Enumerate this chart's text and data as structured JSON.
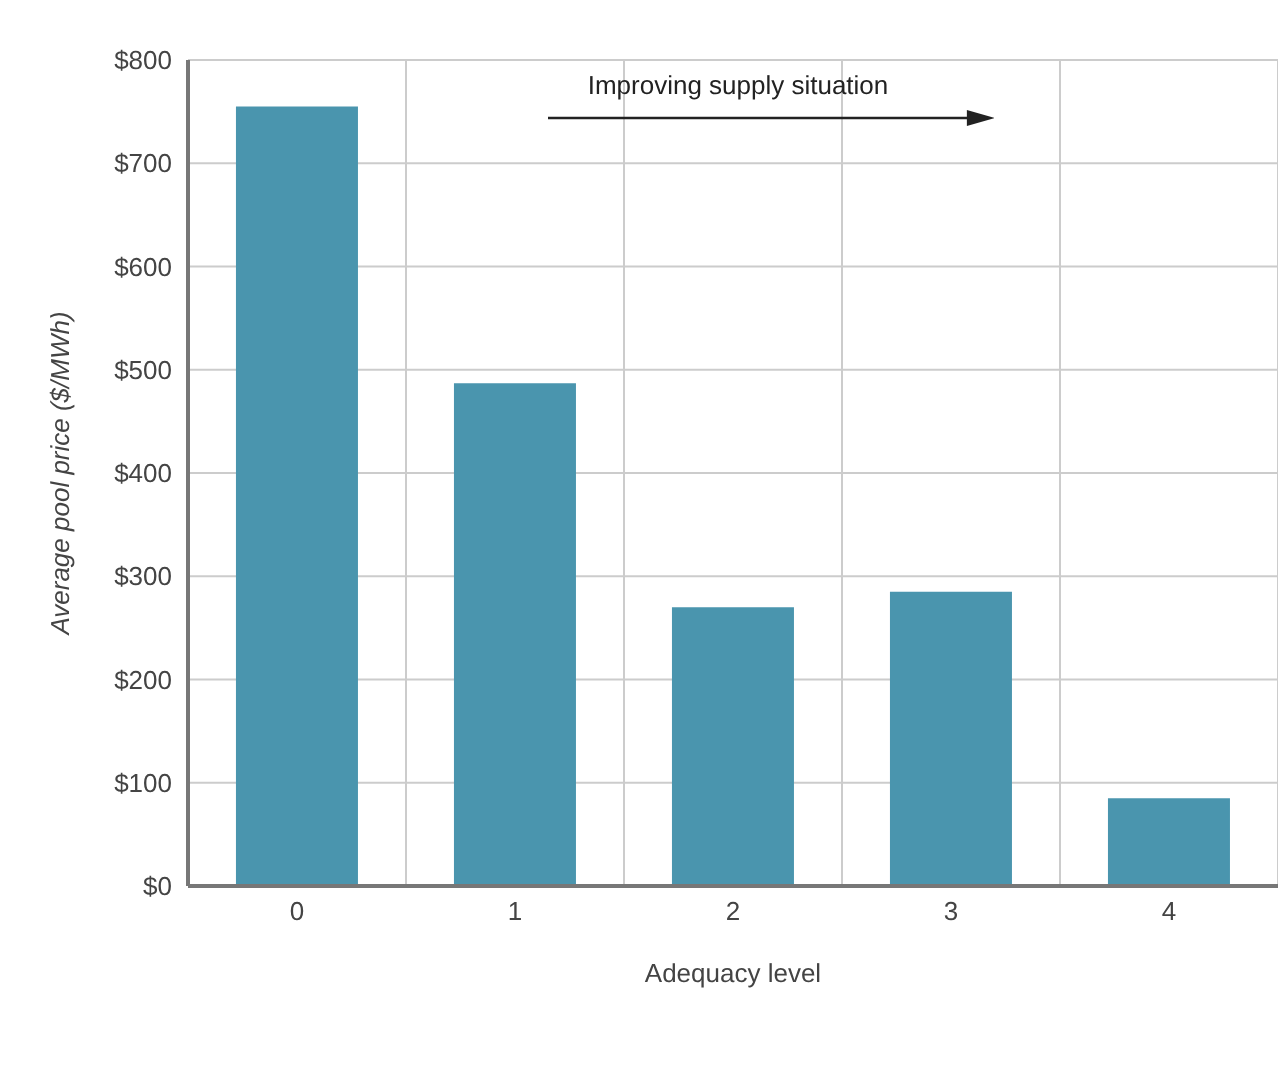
{
  "chart_data": {
    "type": "bar",
    "xlabel": "Adequacy level",
    "ylabel": "Average pool price ($/MWh)",
    "categories": [
      "0",
      "1",
      "2",
      "3",
      "4"
    ],
    "values": [
      755,
      487,
      270,
      285,
      85
    ],
    "color": "#4a95ae",
    "ylim": [
      0,
      800
    ],
    "yticks": [
      {
        "value": 0,
        "label": "$0"
      },
      {
        "value": 100,
        "label": "$100"
      },
      {
        "value": 200,
        "label": "$200"
      },
      {
        "value": 300,
        "label": "$300"
      },
      {
        "value": 400,
        "label": "$400"
      },
      {
        "value": 500,
        "label": "$500"
      },
      {
        "value": 600,
        "label": "$600"
      },
      {
        "value": 700,
        "label": "$700"
      },
      {
        "value": 800,
        "label": "$800"
      }
    ],
    "grid": true,
    "annotations": [
      "Improving supply situation"
    ]
  }
}
